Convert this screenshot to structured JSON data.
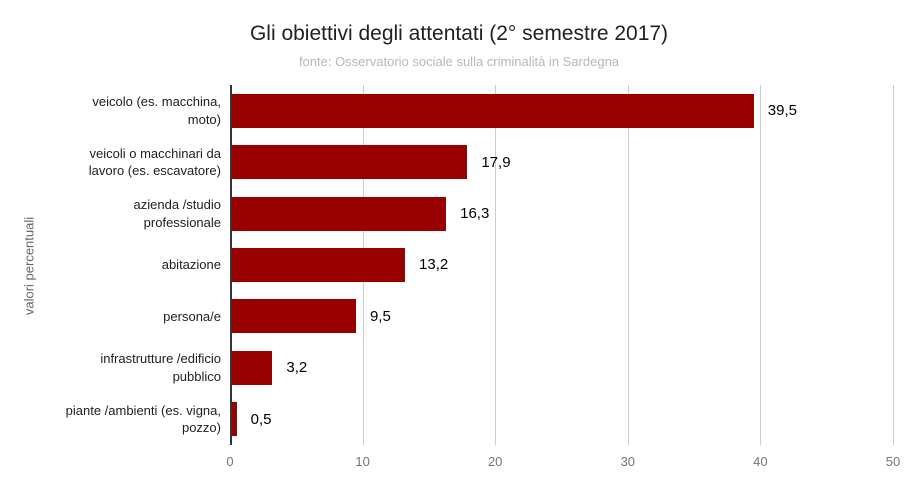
{
  "chart_data": {
    "type": "bar",
    "orientation": "horizontal",
    "title": "Gli obiettivi degli attentati (2° semestre 2017)",
    "subtitle": "fonte: Osservatorio sociale sulla criminalità in Sardegna",
    "ylabel": "valori percentuali",
    "xlabel": "",
    "categories": [
      "veicolo (es. macchina, moto)",
      "veicoli o macchinari da lavoro (es. escavatore)",
      "azienda /studio professionale",
      "abitazione",
      "persona/e",
      "infrastrutture /edificio pubblico",
      "piante /ambienti (es. vigna, pozzo)"
    ],
    "values": [
      39.5,
      17.9,
      16.3,
      13.2,
      9.5,
      3.2,
      0.5
    ],
    "value_labels": [
      "39,5",
      "17,9",
      "16,3",
      "13,2",
      "9,5",
      "3,2",
      "0,5"
    ],
    "x_ticks": [
      "0",
      "10",
      "20",
      "30",
      "40",
      "50"
    ],
    "xlim": [
      0,
      50
    ],
    "grid": true,
    "legend": "none",
    "bar_color": "#990000"
  }
}
